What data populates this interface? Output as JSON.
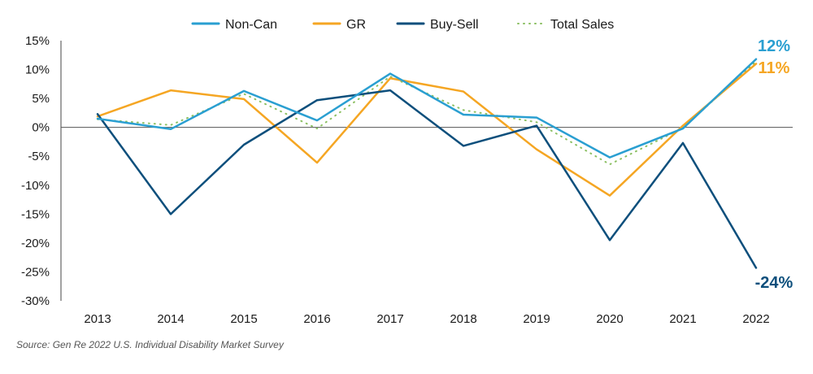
{
  "colors": {
    "non_can": "#2a9fd1",
    "gr": "#f5a623",
    "buy_sell": "#0d4f7c",
    "total_sales": "#8cc063",
    "zero_line": "#555555"
  },
  "chart_data": {
    "type": "line",
    "title": "",
    "xlabel": "",
    "ylabel": "",
    "categories": [
      "2013",
      "2014",
      "2015",
      "2016",
      "2017",
      "2018",
      "2019",
      "2020",
      "2021",
      "2022"
    ],
    "ylim": [
      -30,
      15
    ],
    "yticks": [
      15,
      10,
      5,
      0,
      -5,
      -10,
      -15,
      -20,
      -25,
      -30
    ],
    "ytick_labels": [
      "15%",
      "10%",
      "5%",
      "0%",
      "-5%",
      "-10%",
      "-15%",
      "-20%",
      "-25%",
      "-30%"
    ],
    "grid": false,
    "legend_position": "top",
    "series": [
      {
        "key": "non_can",
        "name": "Non-Can",
        "style": "solid",
        "values": [
          1.5,
          -0.3,
          6.3,
          1.2,
          9.3,
          2.2,
          1.7,
          -5.2,
          -0.2,
          11.8
        ],
        "end_label": "12%"
      },
      {
        "key": "gr",
        "name": "GR",
        "style": "solid",
        "values": [
          1.9,
          6.4,
          4.9,
          -6.1,
          8.5,
          6.2,
          -3.8,
          -11.8,
          0.3,
          11.0
        ],
        "end_label": "11%"
      },
      {
        "key": "buy_sell",
        "name": "Buy-Sell",
        "style": "solid",
        "values": [
          2.3,
          -15.0,
          -3.0,
          4.7,
          6.4,
          -3.2,
          0.3,
          -19.5,
          -2.7,
          -24.3
        ],
        "end_label": "-24%"
      },
      {
        "key": "total_sales",
        "name": "Total Sales",
        "style": "dotted",
        "values": [
          1.4,
          0.4,
          5.8,
          -0.2,
          8.8,
          3.0,
          0.9,
          -6.4,
          -0.1,
          11.4
        ],
        "end_label": ""
      }
    ]
  },
  "source": "Source: Gen Re 2022 U.S. Individual Disability Market Survey"
}
